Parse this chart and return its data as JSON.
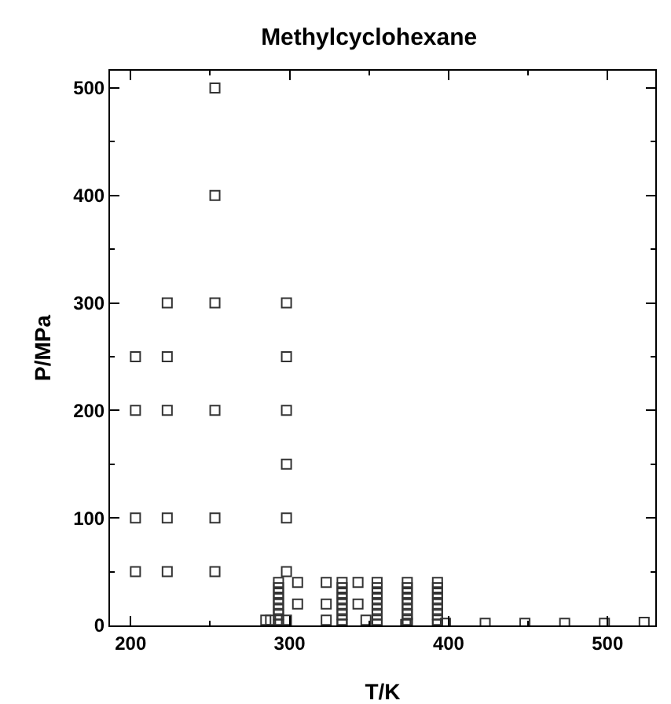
{
  "chart_data": {
    "type": "scatter",
    "title": "Methylcyclohexane",
    "xlabel": "T/K",
    "ylabel": "P/MPa",
    "xlim": [
      187,
      530
    ],
    "ylim": [
      0,
      516
    ],
    "xticks": [
      200,
      300,
      400,
      500
    ],
    "yticks": [
      0,
      100,
      200,
      300,
      400,
      500
    ],
    "grid": false,
    "marker": "square",
    "series": [
      {
        "color": "#333333",
        "x": [
          203,
          203,
          203,
          203,
          223,
          223,
          223,
          223,
          223,
          253,
          253,
          253,
          253,
          253,
          253,
          298,
          298,
          298,
          298,
          298,
          298,
          285,
          288,
          298,
          293,
          293,
          293,
          293,
          293,
          293,
          293,
          293,
          293,
          305,
          305,
          323,
          323,
          323,
          333,
          333,
          333,
          333,
          333,
          333,
          333,
          333,
          333,
          343,
          343,
          348,
          355,
          355,
          355,
          355,
          355,
          355,
          355,
          355,
          355,
          373,
          374,
          374,
          374,
          374,
          374,
          374,
          374,
          374,
          374,
          393,
          393,
          393,
          393,
          393,
          393,
          393,
          393,
          393,
          398,
          423,
          448,
          473,
          498,
          523
        ],
        "values": [
          50,
          100,
          200,
          250,
          50,
          100,
          200,
          250,
          300,
          50,
          100,
          200,
          300,
          400,
          500,
          50,
          100,
          150,
          200,
          250,
          300,
          5,
          5,
          5,
          1,
          5,
          10,
          15,
          20,
          25,
          30,
          35,
          40,
          20,
          40,
          5,
          20,
          40,
          1,
          5,
          10,
          15,
          20,
          25,
          30,
          35,
          40,
          20,
          40,
          5,
          1,
          5,
          10,
          15,
          20,
          25,
          30,
          35,
          40,
          1,
          5,
          10,
          15,
          20,
          25,
          30,
          35,
          40,
          2,
          1,
          5,
          10,
          15,
          20,
          25,
          30,
          35,
          40,
          2,
          2,
          2,
          2,
          2,
          3
        ]
      }
    ]
  }
}
